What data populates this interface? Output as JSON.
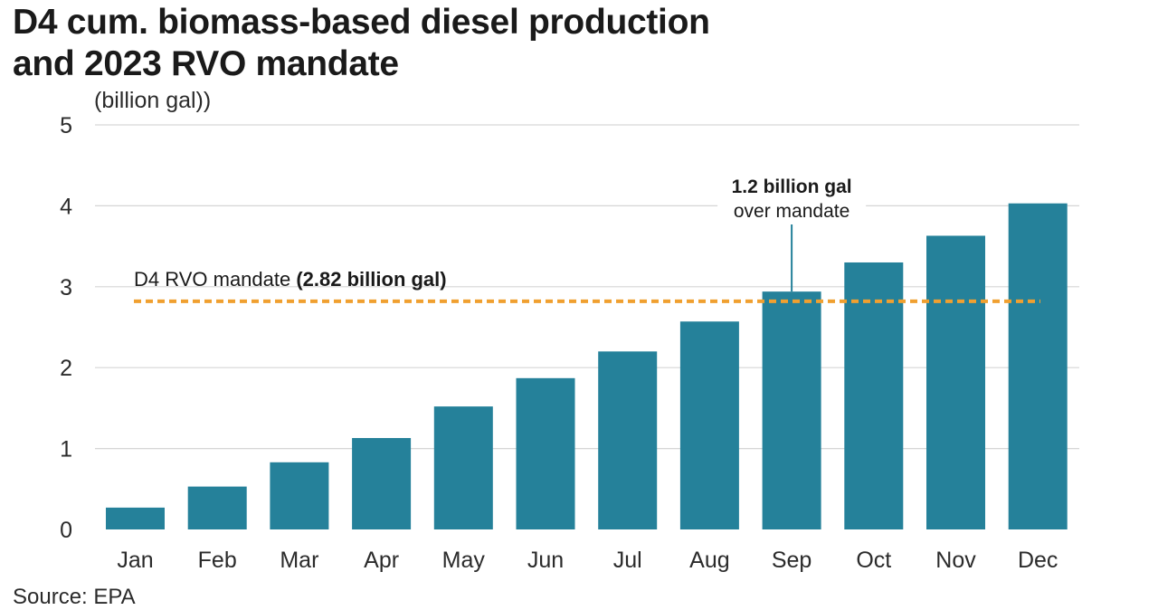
{
  "title_line1": "D4 cum. biomass-based diesel production",
  "title_line2": "and 2023 RVO mandate",
  "unit_label": "(billion gal))",
  "source": "Source: EPA",
  "colors": {
    "bar": "#25819a",
    "mandate_line": "#f0a030",
    "grid": "#d6d6d6",
    "annotation_line": "#25819a"
  },
  "chart_data": {
    "type": "bar",
    "title": "D4 cum. biomass-based diesel production and 2023 RVO mandate",
    "ylabel": "(billion gal))",
    "xlabel": "",
    "categories": [
      "Jan",
      "Feb",
      "Mar",
      "Apr",
      "May",
      "Jun",
      "Jul",
      "Aug",
      "Sep",
      "Oct",
      "Nov",
      "Dec"
    ],
    "values": [
      0.27,
      0.53,
      0.83,
      1.13,
      1.52,
      1.87,
      2.2,
      2.57,
      2.94,
      3.3,
      3.63,
      4.03
    ],
    "ylim": [
      0,
      5
    ],
    "yticks": [
      "0",
      "1",
      "2",
      "3",
      "4",
      "5"
    ],
    "grid": true,
    "reference_line": {
      "value": 2.82,
      "label_plain": "D4 RVO mandate ",
      "label_bold": "(2.82 billion gal)",
      "style": "dashed"
    },
    "annotation": {
      "category": "Sep",
      "line1": "1.2 billion gal",
      "line2": "over mandate"
    }
  }
}
